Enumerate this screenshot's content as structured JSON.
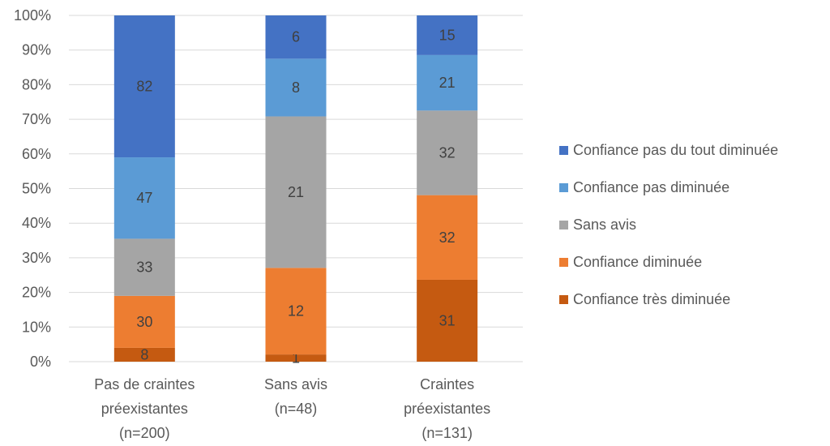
{
  "chart_data": {
    "type": "bar",
    "stacked": "percent",
    "title": "",
    "xlabel": "",
    "ylabel": "",
    "ylim": [
      0,
      100
    ],
    "yticks": [
      "0%",
      "10%",
      "20%",
      "30%",
      "40%",
      "50%",
      "60%",
      "70%",
      "80%",
      "90%",
      "100%"
    ],
    "grid": true,
    "legend_position": "right",
    "categories": [
      [
        "Pas de craintes",
        "préexistantes",
        "(n=200)"
      ],
      [
        "Sans avis",
        "(n=48)"
      ],
      [
        "Craintes",
        "préexistantes",
        "(n=131)"
      ]
    ],
    "series": [
      {
        "name": "Confiance très diminuée",
        "color": "#c55a11",
        "values": [
          8,
          1,
          31
        ]
      },
      {
        "name": "Confiance diminuée",
        "color": "#ed7d31",
        "values": [
          30,
          12,
          32
        ]
      },
      {
        "name": "Sans avis",
        "color": "#a5a5a5",
        "values": [
          33,
          21,
          32
        ]
      },
      {
        "name": "Confiance pas diminuée",
        "color": "#5b9bd5",
        "values": [
          47,
          8,
          21
        ]
      },
      {
        "name": "Confiance pas du tout diminuée",
        "color": "#4472c4",
        "values": [
          82,
          6,
          15
        ]
      }
    ],
    "legend_order": [
      4,
      3,
      2,
      1,
      0
    ]
  }
}
